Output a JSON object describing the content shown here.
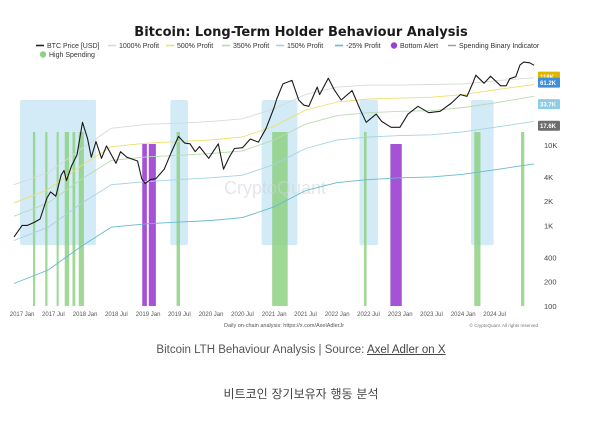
{
  "chart_data": {
    "type": "line",
    "title": "Bitcoin: Long-Term Holder Behaviour Analysis",
    "y_scale": "log",
    "ylim": [
      100,
      80000
    ],
    "xlim": [
      "2016-11-15",
      "2025-02-20"
    ],
    "y_ticks": [
      {
        "value": 10000,
        "label": "10K"
      },
      {
        "value": 4000,
        "label": "4K"
      },
      {
        "value": 2000,
        "label": "2K"
      },
      {
        "value": 1000,
        "label": "1K"
      },
      {
        "value": 400,
        "label": "400"
      },
      {
        "value": 200,
        "label": "200"
      },
      {
        "value": 100,
        "label": "100"
      }
    ],
    "x_ticks": [
      {
        "date": "2017-01-01",
        "label": "2017 Jan"
      },
      {
        "date": "2017-07-01",
        "label": "2017 Jul"
      },
      {
        "date": "2018-01-01",
        "label": "2018 Jan"
      },
      {
        "date": "2018-07-01",
        "label": "2018 Jul"
      },
      {
        "date": "2019-01-01",
        "label": "2019 Jan"
      },
      {
        "date": "2019-07-01",
        "label": "2019 Jul"
      },
      {
        "date": "2020-01-01",
        "label": "2020 Jan"
      },
      {
        "date": "2020-07-01",
        "label": "2020 Jul"
      },
      {
        "date": "2021-01-01",
        "label": "2021 Jan"
      },
      {
        "date": "2021-07-01",
        "label": "2021 Jul"
      },
      {
        "date": "2022-01-01",
        "label": "2022 Jan"
      },
      {
        "date": "2022-07-01",
        "label": "2022 Jul"
      },
      {
        "date": "2023-01-01",
        "label": "2023 Jan"
      },
      {
        "date": "2023-07-01",
        "label": "2023 Jul"
      },
      {
        "date": "2024-01-01",
        "label": "2024 Jan"
      },
      {
        "date": "2024-07-01",
        "label": "2024 Jul"
      }
    ],
    "legend": [
      {
        "name": "BTC Price [USD]",
        "color": "#222222",
        "style": "line"
      },
      {
        "name": "1000% Profit",
        "color": "#d9d9d9",
        "style": "line"
      },
      {
        "name": "500% Profit",
        "color": "#ece06e",
        "style": "line"
      },
      {
        "name": "350% Profit",
        "color": "#b8dcb0",
        "style": "line"
      },
      {
        "name": "150% Profit",
        "color": "#a6d2e6",
        "style": "line"
      },
      {
        "name": "-25% Profit",
        "color": "#66b9cf",
        "style": "line"
      },
      {
        "name": "Bottom Alert",
        "color": "#9b3fd3",
        "style": "dot"
      },
      {
        "name": "Spending Binary Indicator",
        "color": "#9aa5b1",
        "style": "line"
      },
      {
        "name": "High Spending",
        "color": "#8fd184",
        "style": "dot"
      }
    ],
    "last_value_labels": [
      {
        "label": "118K",
        "value": 70000,
        "color": "#e0b500"
      },
      {
        "label": "61.2K",
        "value": 59000,
        "color": "#3f8fd8"
      },
      {
        "label": "33.7K",
        "value": 32000,
        "color": "#8ccde6"
      },
      {
        "label": "17.6K",
        "value": 17200,
        "color": "#6d6d6d"
      }
    ],
    "series": [
      {
        "name": "BTC Price [USD]",
        "color": "#1a1a1a",
        "x": [
          "2016-11-15",
          "2017-01-01",
          "2017-02-01",
          "2017-03-15",
          "2017-04-15",
          "2017-05-25",
          "2017-06-15",
          "2017-07-15",
          "2017-08-15",
          "2017-09-01",
          "2017-09-15",
          "2017-10-15",
          "2017-11-15",
          "2017-12-17",
          "2018-01-15",
          "2018-02-06",
          "2018-03-05",
          "2018-04-06",
          "2018-05-05",
          "2018-06-29",
          "2018-07-25",
          "2018-09-01",
          "2018-11-01",
          "2018-11-25",
          "2018-12-15",
          "2019-01-15",
          "2019-02-15",
          "2019-04-05",
          "2019-05-15",
          "2019-06-26",
          "2019-08-01",
          "2019-09-01",
          "2019-10-01",
          "2019-10-26",
          "2019-12-18",
          "2020-02-12",
          "2020-03-13",
          "2020-04-15",
          "2020-05-15",
          "2020-07-01",
          "2020-08-15",
          "2020-10-01",
          "2020-11-15",
          "2020-12-31",
          "2021-01-15",
          "2021-02-20",
          "2021-04-14",
          "2021-05-23",
          "2021-06-22",
          "2021-07-20",
          "2021-09-07",
          "2021-09-21",
          "2021-11-10",
          "2021-12-15",
          "2022-01-24",
          "2022-03-28",
          "2022-05-12",
          "2022-06-18",
          "2022-08-15",
          "2022-09-15",
          "2022-11-09",
          "2022-12-30",
          "2023-02-15",
          "2023-04-14",
          "2023-06-15",
          "2023-08-20",
          "2023-10-25",
          "2023-12-15",
          "2024-01-23",
          "2024-02-28",
          "2024-03-14",
          "2024-05-01",
          "2024-06-07",
          "2024-08-05",
          "2024-09-06",
          "2024-09-27",
          "2024-11-01",
          "2024-11-25",
          "2024-12-17",
          "2025-01-20",
          "2025-02-15"
        ],
        "values": [
          720,
          1000,
          1000,
          1100,
          1200,
          2200,
          2600,
          2300,
          4200,
          4800,
          3600,
          5500,
          7500,
          19000,
          12000,
          7000,
          11000,
          6800,
          9700,
          5900,
          8200,
          7000,
          6300,
          3800,
          3300,
          3700,
          3800,
          5000,
          8000,
          12700,
          10500,
          10300,
          8200,
          9500,
          6800,
          10300,
          5000,
          7000,
          9000,
          9200,
          11800,
          10800,
          16000,
          29000,
          37000,
          57000,
          63000,
          36000,
          31000,
          30000,
          52000,
          42000,
          67000,
          48000,
          36000,
          47000,
          28000,
          19000,
          24000,
          19500,
          16500,
          16500,
          24000,
          30000,
          25000,
          26000,
          33000,
          42000,
          40000,
          60000,
          73000,
          58000,
          71000,
          54000,
          54000,
          66000,
          70000,
          98000,
          106000,
          104000,
          97000
        ]
      },
      {
        "name": "1000% Profit",
        "color": "#d9d9d9",
        "x": [
          "2016-11-15",
          "2017-06-01",
          "2017-12-15",
          "2018-06-01",
          "2019-01-01",
          "2019-07-01",
          "2020-01-01",
          "2020-07-01",
          "2021-01-01",
          "2021-07-01",
          "2022-01-01",
          "2022-07-01",
          "2023-01-01",
          "2023-07-01",
          "2024-01-01",
          "2024-07-01",
          "2025-02-15"
        ],
        "values": [
          3200,
          4500,
          9000,
          16000,
          18000,
          18500,
          19500,
          21000,
          28000,
          42000,
          52000,
          55000,
          55000,
          56000,
          57000,
          62000,
          68000
        ]
      },
      {
        "name": "500% Profit",
        "color": "#ece06e",
        "x": [
          "2016-11-15",
          "2017-06-01",
          "2017-12-15",
          "2018-06-01",
          "2019-01-01",
          "2019-07-01",
          "2020-01-01",
          "2020-07-01",
          "2021-01-01",
          "2021-07-01",
          "2022-01-01",
          "2022-07-01",
          "2023-01-01",
          "2023-07-01",
          "2024-01-01",
          "2024-07-01",
          "2025-02-15"
        ],
        "values": [
          1900,
          2800,
          5600,
          9500,
          10500,
          11000,
          11500,
          12500,
          17000,
          27000,
          34000,
          37000,
          38000,
          39000,
          42000,
          48000,
          56000
        ]
      },
      {
        "name": "350% Profit",
        "color": "#b8dcb0",
        "x": [
          "2016-11-15",
          "2017-06-01",
          "2017-12-15",
          "2018-06-01",
          "2019-01-01",
          "2019-07-01",
          "2020-01-01",
          "2020-07-01",
          "2021-01-01",
          "2021-07-01",
          "2022-01-01",
          "2022-07-01",
          "2023-01-01",
          "2023-07-01",
          "2024-01-01",
          "2024-07-01",
          "2025-02-15"
        ],
        "values": [
          1300,
          1900,
          3800,
          6400,
          7100,
          7400,
          7800,
          8400,
          11500,
          18000,
          23000,
          25000,
          26000,
          26500,
          29000,
          33000,
          40000
        ]
      },
      {
        "name": "150% Profit",
        "color": "#a6d2e6",
        "x": [
          "2016-11-15",
          "2017-06-01",
          "2017-12-15",
          "2018-06-01",
          "2019-01-01",
          "2019-07-01",
          "2020-01-01",
          "2020-07-01",
          "2021-01-01",
          "2021-07-01",
          "2022-01-01",
          "2022-07-01",
          "2023-01-01",
          "2023-07-01",
          "2024-01-01",
          "2024-07-01",
          "2025-02-15"
        ],
        "values": [
          650,
          950,
          1900,
          3200,
          3500,
          3700,
          3900,
          4200,
          5700,
          9000,
          11500,
          12500,
          13000,
          13300,
          14500,
          16500,
          19500
        ]
      },
      {
        "name": "-25% Profit",
        "color": "#66b9cf",
        "x": [
          "2016-11-15",
          "2017-06-01",
          "2017-12-15",
          "2018-06-01",
          "2019-01-01",
          "2019-07-01",
          "2020-01-01",
          "2020-07-01",
          "2021-01-01",
          "2021-07-01",
          "2022-01-01",
          "2022-07-01",
          "2023-01-01",
          "2023-07-01",
          "2024-01-01",
          "2024-07-01",
          "2025-02-15"
        ],
        "values": [
          190,
          280,
          560,
          950,
          1050,
          1100,
          1150,
          1250,
          1700,
          2700,
          3400,
          3700,
          3900,
          4000,
          4300,
          4900,
          5800
        ]
      },
      {
        "name": "Spending Binary Indicator",
        "color": "#9aa5b1",
        "x": [
          "2016-11-15",
          "2017-06-01",
          "2017-12-15",
          "2018-06-01",
          "2019-01-01",
          "2019-07-01",
          "2020-01-01",
          "2020-07-01",
          "2021-01-01",
          "2021-07-01",
          "2022-01-01",
          "2022-07-01",
          "2023-01-01",
          "2023-07-01",
          "2024-01-01",
          "2024-07-01",
          "2025-02-15"
        ],
        "values": [
          330,
          480,
          950,
          1600,
          1750,
          1850,
          1950,
          2100,
          2900,
          4500,
          5700,
          6200,
          6500,
          6700,
          7200,
          8200,
          9800
        ]
      }
    ],
    "highlight_zones": [
      {
        "start": "2016-12-20",
        "end": "2018-03-05"
      },
      {
        "start": "2019-05-10",
        "end": "2019-08-20"
      },
      {
        "start": "2020-10-20",
        "end": "2021-05-15"
      },
      {
        "start": "2022-05-10",
        "end": "2022-08-25"
      },
      {
        "start": "2024-02-15",
        "end": "2024-06-25"
      }
    ],
    "high_spending_periods": [
      {
        "start": "2017-03-05",
        "end": "2017-03-18"
      },
      {
        "start": "2017-05-15",
        "end": "2017-05-28"
      },
      {
        "start": "2017-07-20",
        "end": "2017-08-01"
      },
      {
        "start": "2017-09-05",
        "end": "2017-09-30"
      },
      {
        "start": "2017-10-20",
        "end": "2017-11-05"
      },
      {
        "start": "2017-11-25",
        "end": "2017-12-25"
      },
      {
        "start": "2019-06-15",
        "end": "2019-07-05"
      },
      {
        "start": "2020-12-20",
        "end": "2021-03-20"
      },
      {
        "start": "2022-06-05",
        "end": "2022-06-20"
      },
      {
        "start": "2024-03-05",
        "end": "2024-04-10"
      },
      {
        "start": "2024-12-01",
        "end": "2024-12-20"
      }
    ],
    "bottom_alert_periods": [
      {
        "start": "2018-11-28",
        "end": "2018-12-25"
      },
      {
        "start": "2019-01-05",
        "end": "2019-02-15"
      },
      {
        "start": "2022-11-05",
        "end": "2023-01-10"
      }
    ]
  },
  "watermark": "CryptoQuant",
  "footer": {
    "note": "Daily on-chain analysis: https://x.com/AxelAdlerJr",
    "copyright": "© CryptoQuant. All rights reserved"
  },
  "caption": {
    "prefix": "Bitcoin LTH Behaviour Analysis | Source: ",
    "link_text": "Axel Adler on X"
  },
  "subcaption": "비트코인 장기보유자 행동 분석"
}
